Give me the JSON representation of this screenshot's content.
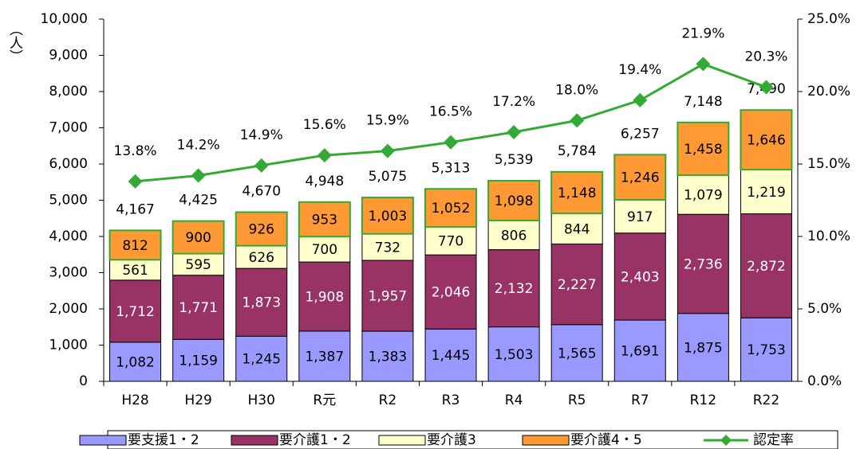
{
  "chart_data": {
    "type": "bar",
    "stacked": true,
    "ylabel": "（人）",
    "categories": [
      "H28",
      "H29",
      "H30",
      "R元",
      "R2",
      "R3",
      "R4",
      "R5",
      "R7",
      "R12",
      "R22"
    ],
    "series": [
      {
        "name": "要支援1・2",
        "color": "#9999ff",
        "label_color": "#000000",
        "values": [
          1082,
          1159,
          1245,
          1387,
          1383,
          1445,
          1503,
          1565,
          1691,
          1875,
          1753
        ],
        "value_labels": [
          "1,082",
          "1,159",
          "1,245",
          "1,387",
          "1,383",
          "1,445",
          "1,503",
          "1,565",
          "1,691",
          "1,875",
          "1,753"
        ]
      },
      {
        "name": "要介護1・2",
        "color": "#993366",
        "label_color": "#ffffff",
        "values": [
          1712,
          1771,
          1873,
          1908,
          1957,
          2046,
          2132,
          2227,
          2403,
          2736,
          2872
        ],
        "value_labels": [
          "1,712",
          "1,771",
          "1,873",
          "1,908",
          "1,957",
          "2,046",
          "2,132",
          "2,227",
          "2,403",
          "2,736",
          "2,872"
        ]
      },
      {
        "name": "要介護3",
        "color": "#ffffcc",
        "label_color": "#000000",
        "values": [
          561,
          595,
          626,
          700,
          732,
          770,
          806,
          844,
          917,
          1079,
          1219
        ],
        "value_labels": [
          "561",
          "595",
          "626",
          "700",
          "732",
          "770",
          "806",
          "844",
          "917",
          "1,079",
          "1,219"
        ]
      },
      {
        "name": "要介護4・5",
        "color": "#ff9933",
        "label_color": "#000000",
        "values": [
          812,
          900,
          926,
          953,
          1003,
          1052,
          1098,
          1148,
          1246,
          1458,
          1646
        ],
        "value_labels": [
          "812",
          "900",
          "926",
          "953",
          "1,003",
          "1,052",
          "1,098",
          "1,148",
          "1,246",
          "1,458",
          "1,646"
        ]
      },
      {
        "name": "認定率",
        "type": "line",
        "axis": "y2",
        "color": "#33aa33",
        "values": [
          13.8,
          14.2,
          14.9,
          15.6,
          15.9,
          16.5,
          17.2,
          18.0,
          19.4,
          21.9,
          20.3
        ],
        "value_labels": [
          "13.8%",
          "14.2%",
          "14.9%",
          "15.6%",
          "15.9%",
          "16.5%",
          "17.2%",
          "18.0%",
          "19.4%",
          "21.9%",
          "20.3%"
        ]
      }
    ],
    "totals": [
      4167,
      4425,
      4670,
      4948,
      5075,
      5313,
      5539,
      5784,
      6257,
      7148,
      7490
    ],
    "totals_labels": [
      "4,167",
      "4,425",
      "4,670",
      "4,948",
      "5,075",
      "5,313",
      "5,539",
      "5,784",
      "6,257",
      "7,148",
      "7,490"
    ],
    "ylim": [
      0,
      10000
    ],
    "yticks": [
      0,
      {
        "value": 1000,
        "label": "1,000"
      },
      {
        "value": 2000,
        "label": "2,000"
      },
      {
        "value": 3000,
        "label": "3,000"
      },
      {
        "value": 4000,
        "label": "4,000"
      },
      {
        "value": 5000,
        "label": "5,000"
      },
      {
        "value": 6000,
        "label": "6,000"
      },
      {
        "value": 7000,
        "label": "7,000"
      },
      {
        "value": 8000,
        "label": "8,000"
      },
      {
        "value": 9000,
        "label": "9,000"
      },
      {
        "value": 10000,
        "label": "10,000"
      }
    ],
    "y2lim": [
      0,
      25
    ],
    "y2ticks": [
      {
        "value": 0,
        "label": "0.0%"
      },
      {
        "value": 5,
        "label": "5.0%"
      },
      {
        "value": 10,
        "label": "10.0%"
      },
      {
        "value": 15,
        "label": "15.0%"
      },
      {
        "value": 20,
        "label": "20.0%"
      },
      {
        "value": 25,
        "label": "25.0%"
      }
    ],
    "legend": "bottom"
  }
}
